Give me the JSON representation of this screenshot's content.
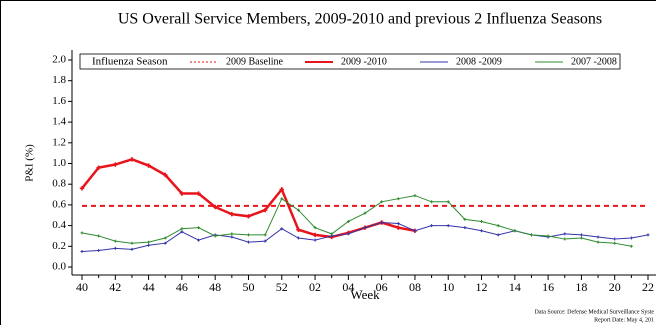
{
  "chart_data": {
    "type": "line",
    "title": "US Overall Service Members, 2009-2010 and previous 2 Influenza Seasons",
    "y_label": "P&I (%)",
    "x_label": "Week",
    "legend_title": "Influenza Season",
    "baseline": {
      "name": "2009 Baseline",
      "color": "#e8141b",
      "value": 0.59
    },
    "categories": [
      "40",
      null,
      "42",
      null,
      "44",
      null,
      "46",
      null,
      "48",
      null,
      "50",
      null,
      "52",
      null,
      "02",
      null,
      "04",
      null,
      "06",
      null,
      "08",
      null,
      "10",
      null,
      "12",
      null,
      "14",
      null,
      "16",
      null,
      "18",
      null,
      "20",
      null,
      "22"
    ],
    "series": [
      {
        "name": "2009 -2010",
        "color": "#e8141b",
        "values": [
          0.76,
          0.96,
          0.99,
          1.04,
          0.98,
          0.89,
          0.71,
          0.71,
          0.58,
          0.51,
          0.49,
          0.55,
          0.75,
          0.36,
          0.31,
          0.29,
          0.33,
          0.38,
          0.43,
          0.38,
          0.35,
          null,
          null,
          null,
          null,
          null,
          null,
          null,
          null,
          null,
          null,
          null,
          null,
          null,
          null
        ]
      },
      {
        "name": "2008 -2009",
        "color": "#3333aa",
        "values": [
          0.15,
          0.16,
          0.18,
          0.17,
          0.21,
          0.23,
          0.34,
          0.26,
          0.31,
          0.29,
          0.24,
          0.25,
          0.37,
          0.28,
          0.26,
          0.3,
          0.32,
          0.38,
          0.43,
          0.42,
          0.35,
          0.4,
          0.4,
          0.38,
          0.35,
          0.31,
          0.35,
          0.31,
          0.29,
          0.32,
          0.31,
          0.29,
          0.27,
          0.28,
          0.31
        ]
      },
      {
        "name": "2007 -2008",
        "color": "#2e8b2e",
        "values": [
          0.33,
          0.3,
          0.25,
          0.23,
          0.24,
          0.28,
          0.37,
          0.38,
          0.3,
          0.32,
          0.31,
          0.31,
          0.66,
          0.55,
          0.38,
          0.32,
          0.44,
          0.52,
          0.63,
          0.66,
          0.69,
          0.63,
          0.63,
          0.46,
          0.44,
          0.4,
          0.35,
          0.31,
          0.3,
          0.27,
          0.28,
          0.24,
          0.23,
          0.2,
          null
        ]
      }
    ],
    "ylim": [
      0,
      2
    ],
    "yticks": [
      {
        "value": 0,
        "label": "0.0"
      },
      0.2,
      0.4,
      0.6,
      0.8,
      {
        "value": 1,
        "label": "1.0"
      },
      1.2,
      1.4,
      1.6,
      1.8,
      {
        "value": 2,
        "label": "2.0"
      }
    ],
    "footnotes": [
      "Data Source: Defense Medical Surveillance Syste",
      "Report Date: May 4, 201"
    ]
  }
}
